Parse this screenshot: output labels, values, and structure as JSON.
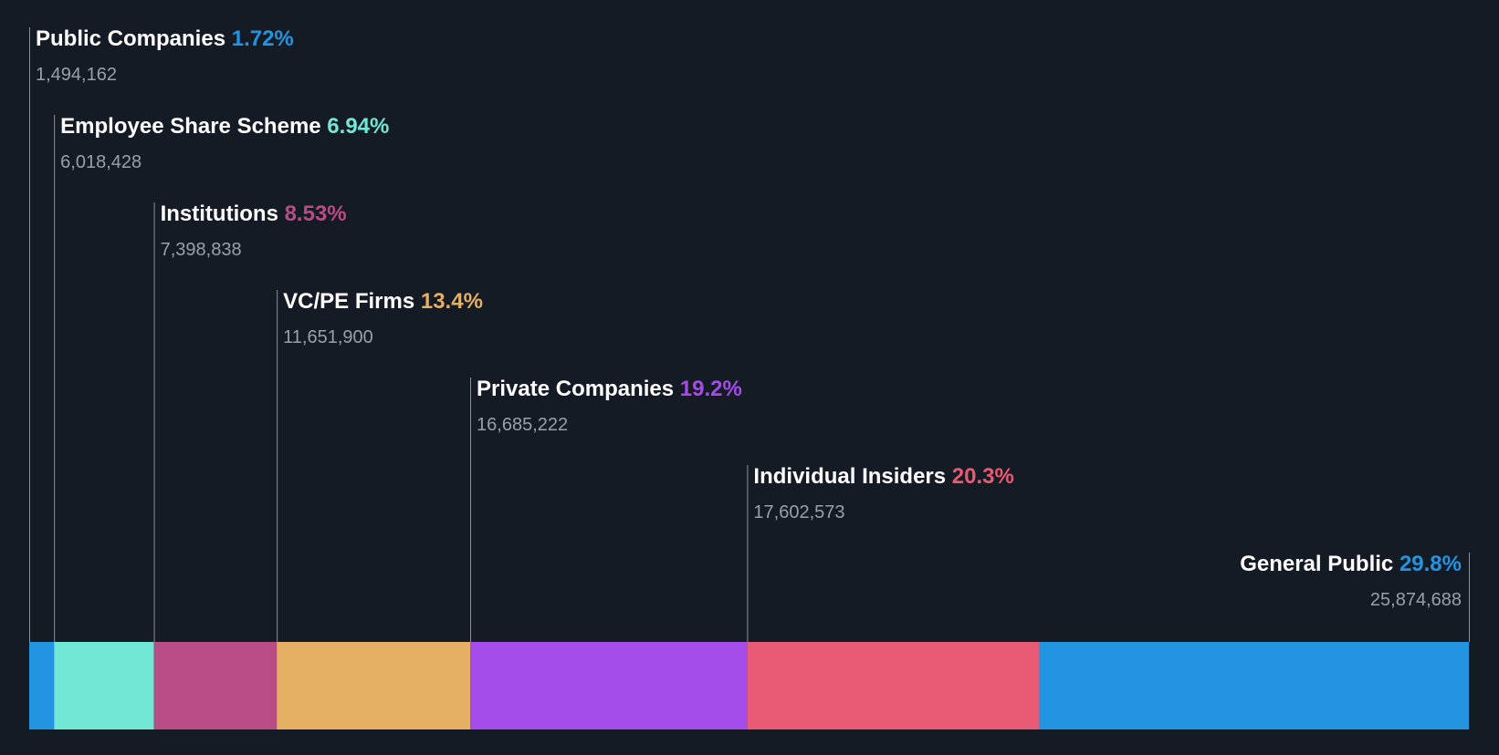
{
  "chart_data": {
    "type": "bar",
    "orientation": "horizontal-stacked",
    "title": "",
    "xlabel": "",
    "ylabel": "",
    "categories": [
      "Public Companies",
      "Employee Share Scheme",
      "Institutions",
      "VC/PE Firms",
      "Private Companies",
      "Individual Insiders",
      "General Public"
    ],
    "series": [
      {
        "name": "Public Companies",
        "percent_label": "1.72%",
        "percent": 1.72,
        "shares": 1494162,
        "shares_label": "1,494,162",
        "color": "#2394df"
      },
      {
        "name": "Employee Share Scheme",
        "percent_label": "6.94%",
        "percent": 6.94,
        "shares": 6018428,
        "shares_label": "6,018,428",
        "color": "#71e7d6"
      },
      {
        "name": "Institutions",
        "percent_label": "8.53%",
        "percent": 8.53,
        "shares": 7398838,
        "shares_label": "7,398,838",
        "color": "#b94b86"
      },
      {
        "name": "VC/PE Firms",
        "percent_label": "13.4%",
        "percent": 13.4,
        "shares": 11651900,
        "shares_label": "11,651,900",
        "color": "#e5b064"
      },
      {
        "name": "Private Companies",
        "percent_label": "19.2%",
        "percent": 19.2,
        "shares": 16685222,
        "shares_label": "16,685,222",
        "color": "#a44ce9"
      },
      {
        "name": "Individual Insiders",
        "percent_label": "20.3%",
        "percent": 20.3,
        "shares": 17602573,
        "shares_label": "17,602,573",
        "color": "#e85a73"
      },
      {
        "name": "General Public",
        "percent_label": "29.8%",
        "percent": 29.8,
        "shares": 25874688,
        "shares_label": "25,874,688",
        "color": "#2394df"
      }
    ],
    "background_color": "#151b24",
    "grid": false,
    "legend": "inline-labels"
  }
}
